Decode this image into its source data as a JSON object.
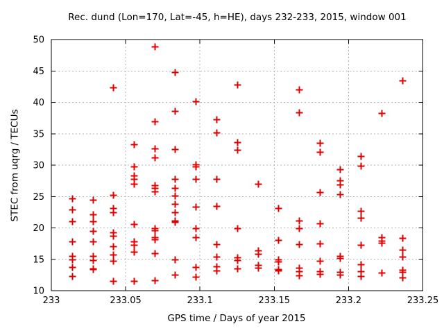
{
  "page": {
    "title": "Rec. dund (Lon=170, Lat=-45, h=HE), days 232-233, 2015, window 001",
    "background": "#ffffff"
  },
  "chart_data": {
    "type": "scatter",
    "title": "Rec. dund (Lon=170, Lat=-45, h=HE), days 232-233, 2015, window 001",
    "xlabel": "GPS time / Days of year 2015",
    "ylabel": "STEC from uqrg / TECUs",
    "xlim": [
      233,
      233.25
    ],
    "ylim": [
      10,
      50
    ],
    "xticks": [
      {
        "v": 233,
        "label": "233"
      },
      {
        "v": 233.05,
        "label": "233.05"
      },
      {
        "v": 233.1,
        "label": "233.1"
      },
      {
        "v": 233.15,
        "label": "233.15"
      },
      {
        "v": 233.2,
        "label": "233.2"
      },
      {
        "v": 233.25,
        "label": "233.25"
      }
    ],
    "yticks": [
      {
        "v": 10,
        "label": "10"
      },
      {
        "v": 15,
        "label": "15"
      },
      {
        "v": 20,
        "label": "20"
      },
      {
        "v": 25,
        "label": "25"
      },
      {
        "v": 30,
        "label": "30"
      },
      {
        "v": 35,
        "label": "35"
      },
      {
        "v": 40,
        "label": "40"
      },
      {
        "v": 45,
        "label": "45"
      },
      {
        "v": 50,
        "label": "50"
      }
    ],
    "grid": true,
    "legend_position": "none",
    "marker": {
      "shape": "plus",
      "color": "#dd0000",
      "half": 5,
      "stroke": 2
    },
    "grid_color": "#b3b3b3",
    "axis_color": "#000000",
    "series": [
      {
        "name": "STEC",
        "columns": [
          {
            "day": 233.0139,
            "values": [
              24.7,
              22.9,
              21.0,
              17.9,
              15.5,
              15.0,
              13.8,
              12.3
            ]
          },
          {
            "day": 233.0278,
            "values": [
              24.5,
              22.2,
              21.0,
              19.5,
              17.8,
              15.5,
              14.9,
              13.5,
              13.4
            ]
          },
          {
            "day": 233.0417,
            "values": [
              42.4,
              25.2,
              23.2,
              22.5,
              19.3,
              18.7,
              17.1,
              15.8,
              14.8,
              11.6
            ]
          },
          {
            "day": 233.0556,
            "values": [
              33.3,
              29.8,
              28.3,
              27.8,
              27.0,
              20.6,
              17.8,
              17.3,
              16.2,
              11.6
            ]
          },
          {
            "day": 233.0694,
            "values": [
              48.9,
              37.0,
              32.6,
              31.2,
              26.8,
              26.3,
              25.8,
              19.9,
              19.6,
              18.5,
              18.2,
              16.0,
              11.7
            ]
          },
          {
            "day": 233.0833,
            "values": [
              44.8,
              38.6,
              32.5,
              27.8,
              26.4,
              25.1,
              23.8,
              22.5,
              21.2,
              20.9,
              15.0,
              12.5
            ]
          },
          {
            "day": 233.0972,
            "values": [
              40.2,
              30.1,
              29.8,
              27.8,
              23.4,
              19.9,
              18.5,
              13.8,
              12.2
            ]
          },
          {
            "day": 233.1111,
            "values": [
              37.3,
              35.2,
              27.8,
              23.5,
              17.4,
              15.4,
              13.9,
              13.2
            ]
          },
          {
            "day": 233.125,
            "values": [
              42.8,
              33.6,
              32.4,
              19.9,
              15.3,
              14.9,
              13.5
            ]
          },
          {
            "day": 233.1389,
            "values": [
              27.0,
              16.4,
              15.9,
              14.1,
              13.6
            ]
          },
          {
            "day": 233.1528,
            "values": [
              23.1,
              18.1,
              15.0,
              14.6,
              13.4,
              13.2
            ]
          },
          {
            "day": 233.1667,
            "values": [
              42.0,
              38.4,
              21.2,
              19.9,
              17.4,
              13.6,
              13.1,
              12.4
            ]
          },
          {
            "day": 233.1806,
            "values": [
              33.5,
              32.1,
              25.7,
              20.7,
              17.5,
              14.7,
              13.1,
              12.6
            ]
          },
          {
            "day": 233.1944,
            "values": [
              29.3,
              27.6,
              26.9,
              25.4,
              15.5,
              15.2,
              13.0,
              12.5
            ]
          },
          {
            "day": 233.2083,
            "values": [
              31.4,
              29.9,
              22.7,
              21.6,
              17.3,
              14.2,
              13.1,
              12.3
            ]
          },
          {
            "day": 233.2222,
            "values": [
              38.3,
              18.5,
              18.0,
              17.6,
              12.9
            ]
          },
          {
            "day": 233.2361,
            "values": [
              43.5,
              18.4,
              16.5,
              15.4,
              13.3,
              13.0,
              12.1
            ]
          }
        ]
      }
    ]
  }
}
